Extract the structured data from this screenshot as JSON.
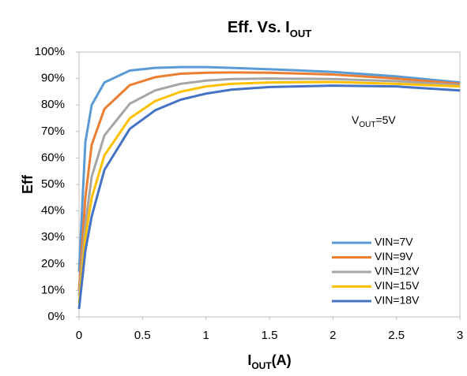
{
  "chart_data": {
    "type": "line",
    "title": {
      "text": "Eff. Vs. I",
      "sub": "OUT"
    },
    "x_label": {
      "text": "I",
      "sub": "OUT",
      "rest": "(A)"
    },
    "y_label": "Eff",
    "annotation": {
      "text": "V",
      "sub": "OUT",
      "rest": "=5V"
    },
    "x": [
      0,
      0.05,
      0.1,
      0.2,
      0.4,
      0.6,
      0.8,
      1.0,
      1.2,
      1.5,
      2,
      2.5,
      3
    ],
    "series": [
      {
        "name": "VIN=7V",
        "color": "#5b9bd5",
        "values": [
          17,
          66,
          80,
          88.5,
          93,
          94,
          94.3,
          94.3,
          94,
          93.5,
          92.5,
          90.8,
          88.5
        ]
      },
      {
        "name": "VIN=9V",
        "color": "#ed7d31",
        "values": [
          10,
          45,
          65,
          78.5,
          87.5,
          90.5,
          91.8,
          92.2,
          92.3,
          92.2,
          91.5,
          90,
          88
        ]
      },
      {
        "name": "VIN=12V",
        "color": "#a5a5a5",
        "values": [
          8,
          35,
          53,
          68.5,
          80.5,
          85.5,
          88,
          89.2,
          89.8,
          90,
          89.8,
          89,
          87.5
        ]
      },
      {
        "name": "VIN=15V",
        "color": "#ffc000",
        "values": [
          5,
          30,
          45,
          61,
          75,
          81.5,
          85,
          87,
          88,
          88.5,
          88.7,
          88,
          87
        ]
      },
      {
        "name": "VIN=18V",
        "color": "#4472c4",
        "values": [
          3,
          25,
          38,
          55.5,
          71,
          78,
          82,
          84.3,
          85.8,
          86.8,
          87.3,
          87,
          85.5
        ]
      }
    ],
    "xlim": [
      0,
      3
    ],
    "xticks": [
      0,
      0.5,
      1,
      1.5,
      2,
      2.5,
      3
    ],
    "ylim": [
      0,
      100
    ],
    "yticks": [
      {
        "value": 0,
        "label": "0%"
      },
      {
        "value": 10,
        "label": "10%"
      },
      {
        "value": 20,
        "label": "20%"
      },
      {
        "value": 30,
        "label": "30%"
      },
      {
        "value": 40,
        "label": "40%"
      },
      {
        "value": 50,
        "label": "50%"
      },
      {
        "value": 60,
        "label": "60%"
      },
      {
        "value": 70,
        "label": "70%"
      },
      {
        "value": 80,
        "label": "80%"
      },
      {
        "value": 90,
        "label": "90%"
      },
      {
        "value": 100,
        "label": "100%"
      }
    ],
    "grid": false,
    "legend": "lower right"
  }
}
